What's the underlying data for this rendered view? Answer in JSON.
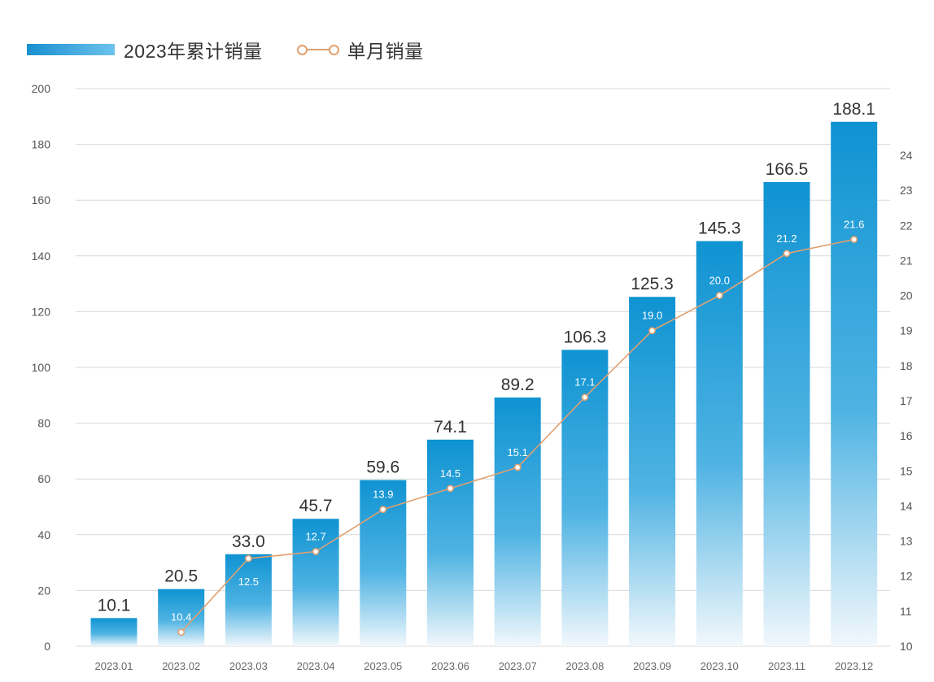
{
  "legend": {
    "cumulative_label": "2023年累计销量",
    "monthly_label": "单月销量"
  },
  "colors": {
    "bar_top": "#0f93d2",
    "bar_bottom": "#eef6fb",
    "line": "#e0a070",
    "grid": "#d9d9d9",
    "bar_value_text": "#333333",
    "line_value_text": "#ffffff"
  },
  "chart_data": {
    "type": "bar",
    "categories": [
      "2023.01",
      "2023.02",
      "2023.03",
      "2023.04",
      "2023.05",
      "2023.06",
      "2023.07",
      "2023.08",
      "2023.09",
      "2023.10",
      "2023.11",
      "2023.12"
    ],
    "series": [
      {
        "name": "2023年累计销量",
        "type": "bar",
        "axis": "left",
        "values": [
          10.1,
          20.5,
          33.0,
          45.7,
          59.6,
          74.1,
          89.2,
          106.3,
          125.3,
          145.3,
          166.5,
          188.1
        ],
        "labels": [
          "10.1",
          "20.5",
          "33.0",
          "45.7",
          "59.6",
          "74.1",
          "89.2",
          "106.3",
          "125.3",
          "145.3",
          "166.5",
          "188.1"
        ]
      },
      {
        "name": "单月销量",
        "type": "line",
        "axis": "right",
        "values": [
          null,
          10.4,
          12.5,
          12.7,
          13.9,
          14.5,
          15.1,
          17.1,
          19.0,
          20.0,
          21.2,
          21.6
        ],
        "labels": [
          "",
          "10.4",
          "12.5",
          "12.7",
          "13.9",
          "14.5",
          "15.1",
          "17.1",
          "19.0",
          "20.0",
          "21.2",
          "21.6"
        ]
      }
    ],
    "ylim_left": [
      0,
      200
    ],
    "yticks_left": [
      "0",
      "20",
      "40",
      "60",
      "80",
      "100",
      "120",
      "140",
      "160",
      "180",
      "200"
    ],
    "ylim_right": [
      10,
      26
    ],
    "yticks_right": [
      "10",
      "11",
      "12",
      "13",
      "14",
      "15",
      "16",
      "17",
      "18",
      "19",
      "20",
      "21",
      "22",
      "23",
      "24"
    ],
    "grid": true,
    "legend_position": "top-left"
  }
}
